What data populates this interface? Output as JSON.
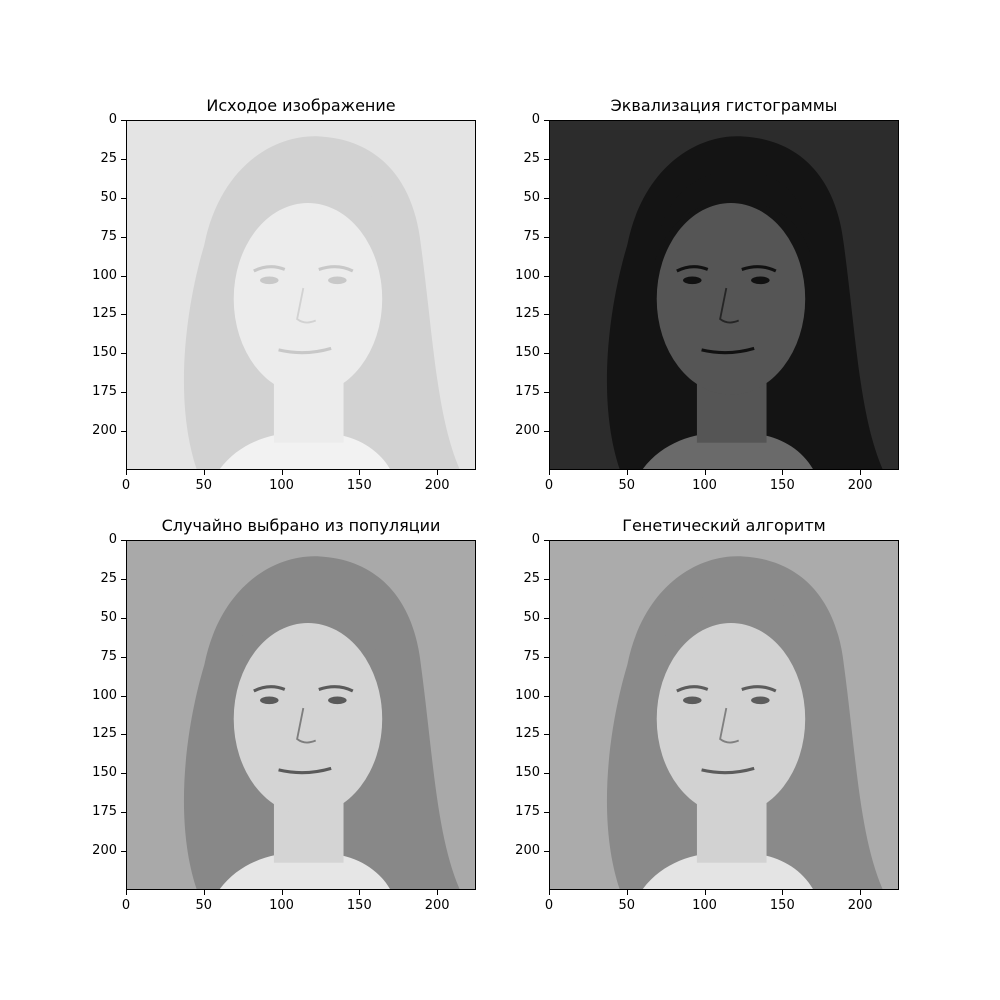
{
  "figure": {
    "panels": [
      {
        "id": "original",
        "title": "Исходое изображение",
        "tone": {
          "bg": "#e4e4e4",
          "hair": "#d2d2d2",
          "face": "#ececec",
          "feature": "#c8c8c8",
          "shirt": "#f2f2f2"
        }
      },
      {
        "id": "equalized",
        "title": "Эквализация гистограммы",
        "tone": {
          "bg": "#2c2c2c",
          "hair": "#141414",
          "face": "#555555",
          "feature": "#111111",
          "shirt": "#6a6a6a"
        }
      },
      {
        "id": "random",
        "title": "Случайно выбрано из популяции",
        "tone": {
          "bg": "#a9a9a9",
          "hair": "#888888",
          "face": "#d4d4d4",
          "feature": "#5a5a5a",
          "shirt": "#e6e6e6"
        }
      },
      {
        "id": "genetic",
        "title": "Генетический алгоритм",
        "tone": {
          "bg": "#ababab",
          "hair": "#8a8a8a",
          "face": "#d2d2d2",
          "feature": "#5c5c5c",
          "shirt": "#e4e4e4"
        }
      }
    ],
    "y_ticks": [
      "0",
      "25",
      "50",
      "75",
      "100",
      "125",
      "150",
      "175",
      "200"
    ],
    "x_ticks": [
      "0",
      "50",
      "100",
      "150",
      "200"
    ],
    "axis_max": 225
  }
}
